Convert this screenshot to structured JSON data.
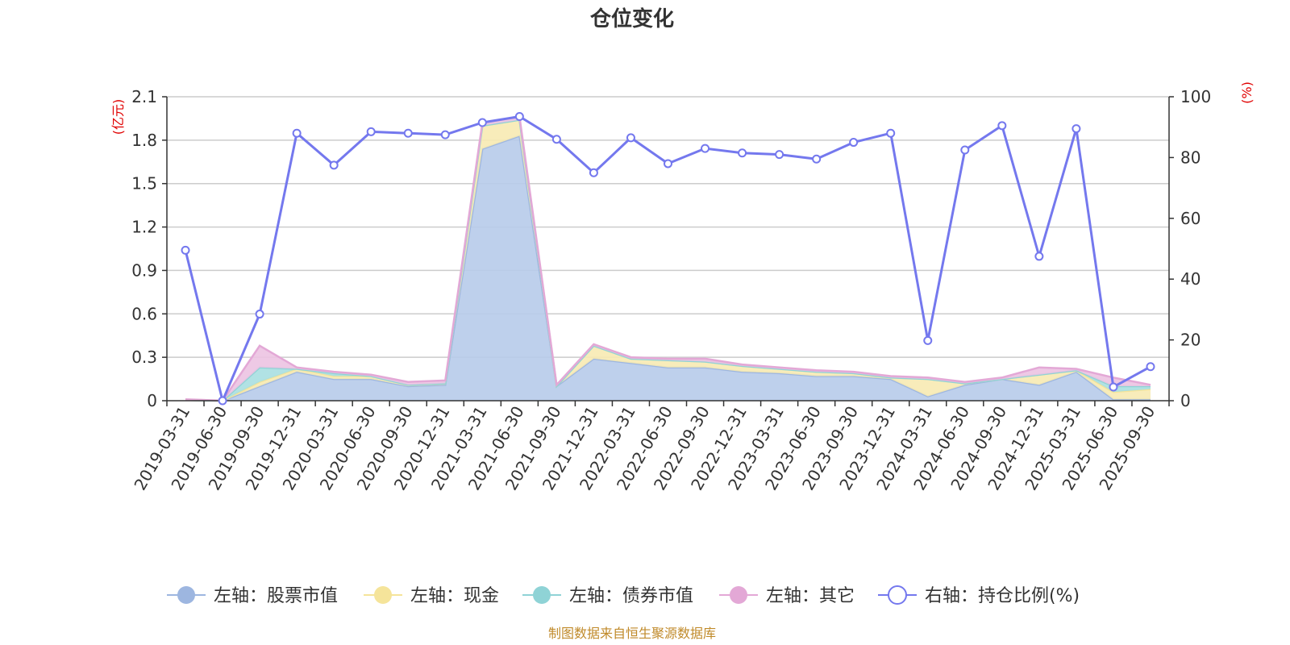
{
  "chart_data": {
    "type": "area",
    "title": "仓位变化",
    "left_unit": "(亿元)",
    "right_unit": "(%)",
    "categories": [
      "2019-03-31",
      "2019-06-30",
      "2019-09-30",
      "2019-12-31",
      "2020-03-31",
      "2020-06-30",
      "2020-09-30",
      "2020-12-31",
      "2021-03-31",
      "2021-06-30",
      "2021-09-30",
      "2021-12-31",
      "2022-03-31",
      "2022-06-30",
      "2022-09-30",
      "2022-12-31",
      "2023-03-31",
      "2023-06-30",
      "2023-09-30",
      "2023-12-31",
      "2024-03-31",
      "2024-06-30",
      "2024-09-30",
      "2024-12-31",
      "2025-03-31",
      "2025-06-30",
      "2025-09-30"
    ],
    "left_axis": {
      "min": 0,
      "max": 2.1,
      "ticks": [
        "0",
        "0.3",
        "0.6",
        "0.9",
        "1.2",
        "1.5",
        "1.8",
        "2.1"
      ]
    },
    "right_axis": {
      "min": 0,
      "max": 100,
      "ticks": [
        "0",
        "20",
        "40",
        "60",
        "80",
        "100"
      ]
    },
    "stacked_series": [
      {
        "name": "左轴：股票市值",
        "color": "#9db6e0",
        "fill": "#b7cbea",
        "values": [
          0.005,
          0,
          0.1,
          0.2,
          0.15,
          0.15,
          0.1,
          0.11,
          1.74,
          1.83,
          0.1,
          0.29,
          0.26,
          0.23,
          0.23,
          0.2,
          0.19,
          0.17,
          0.17,
          0.15,
          0.03,
          0.11,
          0.15,
          0.11,
          0.2,
          0.01,
          0.01
        ]
      },
      {
        "name": "左轴：现金",
        "color": "#f5e49a",
        "fill": "#f7eab2",
        "values": [
          0,
          0,
          0.03,
          0.02,
          0.02,
          0.02,
          0.01,
          0.01,
          0.16,
          0.11,
          0,
          0.09,
          0.03,
          0.05,
          0.04,
          0.04,
          0.03,
          0.03,
          0.02,
          0.01,
          0.12,
          0.01,
          0,
          0.07,
          0.01,
          0.05,
          0.07
        ]
      },
      {
        "name": "左轴：债券市值",
        "color": "#8fd3d6",
        "fill": "#a9dfe1",
        "values": [
          0,
          0,
          0.1,
          0,
          0.02,
          0,
          0,
          0,
          0,
          0,
          0,
          0,
          0,
          0,
          0,
          0,
          0,
          0,
          0,
          0,
          0,
          0,
          0,
          0,
          0,
          0.04,
          0.02
        ]
      },
      {
        "name": "左轴：其它",
        "color": "#e3a8d6",
        "fill": "#ecc3e2",
        "values": [
          0.005,
          0,
          0.15,
          0.01,
          0.01,
          0.01,
          0.02,
          0.02,
          0.02,
          0.02,
          0.01,
          0.01,
          0.01,
          0.01,
          0.02,
          0.01,
          0.01,
          0.01,
          0.01,
          0.01,
          0.01,
          0.01,
          0.01,
          0.05,
          0.01,
          0.06,
          0.01
        ]
      }
    ],
    "line_series": {
      "name": "右轴：持仓比例(%)",
      "color": "#7478ee",
      "values": [
        49.5,
        0,
        28.5,
        88,
        77.5,
        88.5,
        88,
        87.5,
        91.5,
        93.5,
        86,
        75,
        86.5,
        78,
        83,
        81.5,
        81,
        79.5,
        85,
        88,
        19.8,
        82.5,
        90.5,
        47.5,
        89.5,
        4.5,
        11.2
      ]
    },
    "legend_position": "bottom",
    "grid": true
  },
  "source_text": "制图数据来自恒生聚源数据库"
}
